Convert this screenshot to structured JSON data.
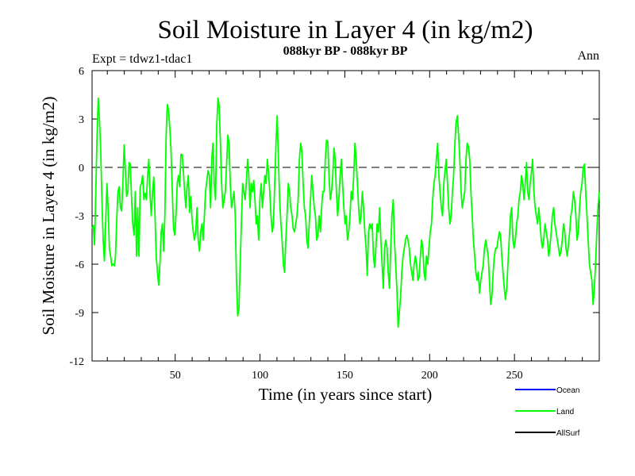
{
  "chart_data": {
    "type": "line",
    "title": "Soil Moisture in Layer 4 (in kg/m2)",
    "subtitle": "088kyr BP - 088kyr BP",
    "expt_label": "Expt = tdwz1-tdac1",
    "period_label": "Ann",
    "xlabel": "Time (in years since start)",
    "ylabel": "Soil Moisture in Layer 4 (in kg/m2)",
    "xlim": [
      1,
      300
    ],
    "ylim": [
      -12,
      6
    ],
    "x_ticks": [
      50,
      100,
      150,
      200,
      250
    ],
    "y_ticks": [
      6,
      3,
      0,
      -3,
      -6,
      -9,
      -12
    ],
    "reference_line": 0,
    "grid": false,
    "legend_position": "bottom-right",
    "legend": [
      {
        "name": "Ocean",
        "color": "#0000ff"
      },
      {
        "name": "Land",
        "color": "#00ff00"
      },
      {
        "name": "AllSurf",
        "color": "#000000"
      }
    ],
    "series": [
      {
        "name": "Land",
        "color": "#00ff00",
        "x_start": 1,
        "x_step": 1,
        "values": [
          -3.8,
          -3.6,
          -4.8,
          -1.5,
          1.8,
          4.3,
          3.0,
          1.0,
          -2.0,
          -4.5,
          -5.8,
          -3.5,
          -1.0,
          -2.5,
          -5.0,
          -5.5,
          -6.1,
          -6.0,
          -6.1,
          -5.5,
          -3.2,
          -1.5,
          -1.2,
          -2.5,
          -2.7,
          -0.8,
          1.4,
          -0.2,
          -1.8,
          -1.5,
          0.3,
          0.2,
          -2.0,
          -3.5,
          -4.2,
          -1.5,
          -5.5,
          -2.5,
          -5.5,
          -1.2,
          -1.0,
          -0.5,
          -2.0,
          -1.6,
          -2.0,
          -0.5,
          0.5,
          -1.8,
          -3.0,
          -1.5,
          -0.6,
          -3.0,
          -5.5,
          -6.5,
          -7.3,
          -6.0,
          -4.0,
          -3.5,
          -5.2,
          -3.0,
          2.0,
          3.9,
          3.5,
          2.5,
          1.0,
          -1.5,
          -3.8,
          -4.2,
          -3.0,
          -1.0,
          -0.5,
          -1.2,
          0.8,
          0.8,
          -0.3,
          -1.5,
          -2.5,
          -1.2,
          -0.5,
          -2.8,
          -1.8,
          -3.2,
          -4.0,
          -4.5,
          -4.0,
          -2.5,
          -4.5,
          -5.2,
          -4.0,
          -3.5,
          -4.5,
          -3.0,
          -1.5,
          -0.8,
          -0.2,
          -0.5,
          -2.5,
          0.5,
          1.5,
          -1.0,
          -2.0,
          2.5,
          4.3,
          3.8,
          1.5,
          -1.0,
          -2.5,
          -2.0,
          -1.5,
          0.2,
          2.0,
          1.5,
          -1.0,
          -2.5,
          -2.0,
          -1.5,
          -3.0,
          -7.0,
          -9.2,
          -8.8,
          -6.0,
          -3.5,
          -1.0,
          -1.5,
          -2.0,
          -1.0,
          0.5,
          -0.5,
          -2.5,
          -1.0,
          -1.5,
          -0.8,
          -2.0,
          -3.5,
          -3.0,
          -4.5,
          -2.0,
          -1.0,
          -2.5,
          -1.5,
          -0.5,
          -1.0,
          0.5,
          -0.3,
          -1.5,
          -3.0,
          -4.0,
          -3.5,
          -1.0,
          1.5,
          3.2,
          0.5,
          -2.0,
          -3.5,
          -4.5,
          -6.0,
          -6.5,
          -4.5,
          -3.0,
          -1.0,
          -1.5,
          -2.5,
          -3.0,
          -3.8,
          -4.0,
          -3.5,
          -3.0,
          -2.0,
          0.5,
          1.5,
          1.0,
          -1.0,
          -2.5,
          -3.0,
          -4.5,
          -5.0,
          -3.5,
          -2.0,
          -0.5,
          -1.5,
          -2.5,
          -3.0,
          -4.5,
          -4.2,
          -3.0,
          -4.0,
          -2.5,
          -1.5,
          -1.5,
          0.5,
          1.7,
          1.6,
          -0.5,
          -2.0,
          -1.5,
          -0.5,
          1.2,
          0.5,
          -1.5,
          -3.0,
          -2.0,
          -0.5,
          0.5,
          -1.0,
          -2.5,
          -3.5,
          -3.0,
          -4.5,
          -4.0,
          -3.0,
          -1.5,
          -2.0,
          -0.5,
          1.5,
          0.5,
          -1.0,
          -2.5,
          -3.5,
          -3.0,
          -1.5,
          -2.5,
          -4.0,
          -5.0,
          -6.7,
          -4.0,
          -3.5,
          -3.8,
          -3.5,
          -5.5,
          -6.2,
          -5.0,
          -3.5,
          -4.0,
          -2.5,
          -4.5,
          -6.0,
          -7.5,
          -5.0,
          -4.5,
          -5.0,
          -6.5,
          -7.5,
          -5.0,
          -3.0,
          -2.0,
          -4.5,
          -6.0,
          -7.5,
          -9.9,
          -9.0,
          -8.0,
          -6.5,
          -5.5,
          -5.0,
          -4.5,
          -4.2,
          -4.5,
          -5.0,
          -6.0,
          -6.5,
          -7.0,
          -6.0,
          -5.5,
          -6.0,
          -7.0,
          -6.8,
          -5.5,
          -4.5,
          -5.0,
          -6.5,
          -7.0,
          -5.5,
          -6.0,
          -5.0,
          -4.0,
          -3.5,
          -2.0,
          -1.0,
          -0.5,
          0.5,
          1.5,
          -0.5,
          -1.5,
          -2.5,
          -3.0,
          -1.0,
          -0.2,
          0.5,
          -1.0,
          -2.5,
          -3.5,
          -3.0,
          -1.5,
          -0.5,
          1.5,
          2.8,
          3.2,
          2.0,
          0.5,
          -1.5,
          -2.5,
          -2.0,
          -1.5,
          0.5,
          1.5,
          1.3,
          0.5,
          -1.5,
          -3.0,
          -4.5,
          -5.5,
          -6.5,
          -7.0,
          -6.5,
          -7.8,
          -7.0,
          -6.5,
          -6.0,
          -5.0,
          -4.5,
          -5.0,
          -5.5,
          -7.0,
          -8.5,
          -8.0,
          -6.5,
          -5.5,
          -5.0,
          -5.0,
          -4.5,
          -4.0,
          -4.2,
          -5.5,
          -6.5,
          -7.5,
          -8.2,
          -7.5,
          -6.0,
          -4.5,
          -3.0,
          -2.5,
          -4.5,
          -5.0,
          -4.5,
          -3.5,
          -3.0,
          -2.0,
          -1.5,
          -0.5,
          -1.0,
          -2.0,
          -1.0,
          0.3,
          -1.5,
          -2.0,
          -1.0,
          -0.3,
          0.5,
          -1.5,
          -2.5,
          -3.0,
          -3.5,
          -2.5,
          -3.5,
          -4.5,
          -5.0,
          -4.5,
          -3.5,
          -4.0,
          -4.5,
          -5.5,
          -5.0,
          -4.0,
          -3.0,
          -2.5,
          -3.5,
          -4.0,
          -4.5,
          -5.0,
          -5.5,
          -5.2,
          -4.5,
          -3.5,
          -4.0,
          -5.0,
          -5.5,
          -4.8,
          -4.0,
          -3.0,
          -2.5,
          -1.5,
          -2.0,
          -3.0,
          -4.5,
          -4.0,
          -2.5,
          -1.5,
          -1.0,
          0.0,
          0.2,
          -1.5,
          -3.0,
          -4.5,
          -6.0,
          -6.5,
          -7.0,
          -8.5,
          -7.5,
          -6.0,
          -4.0,
          -2.5,
          -1.5
        ]
      }
    ]
  }
}
